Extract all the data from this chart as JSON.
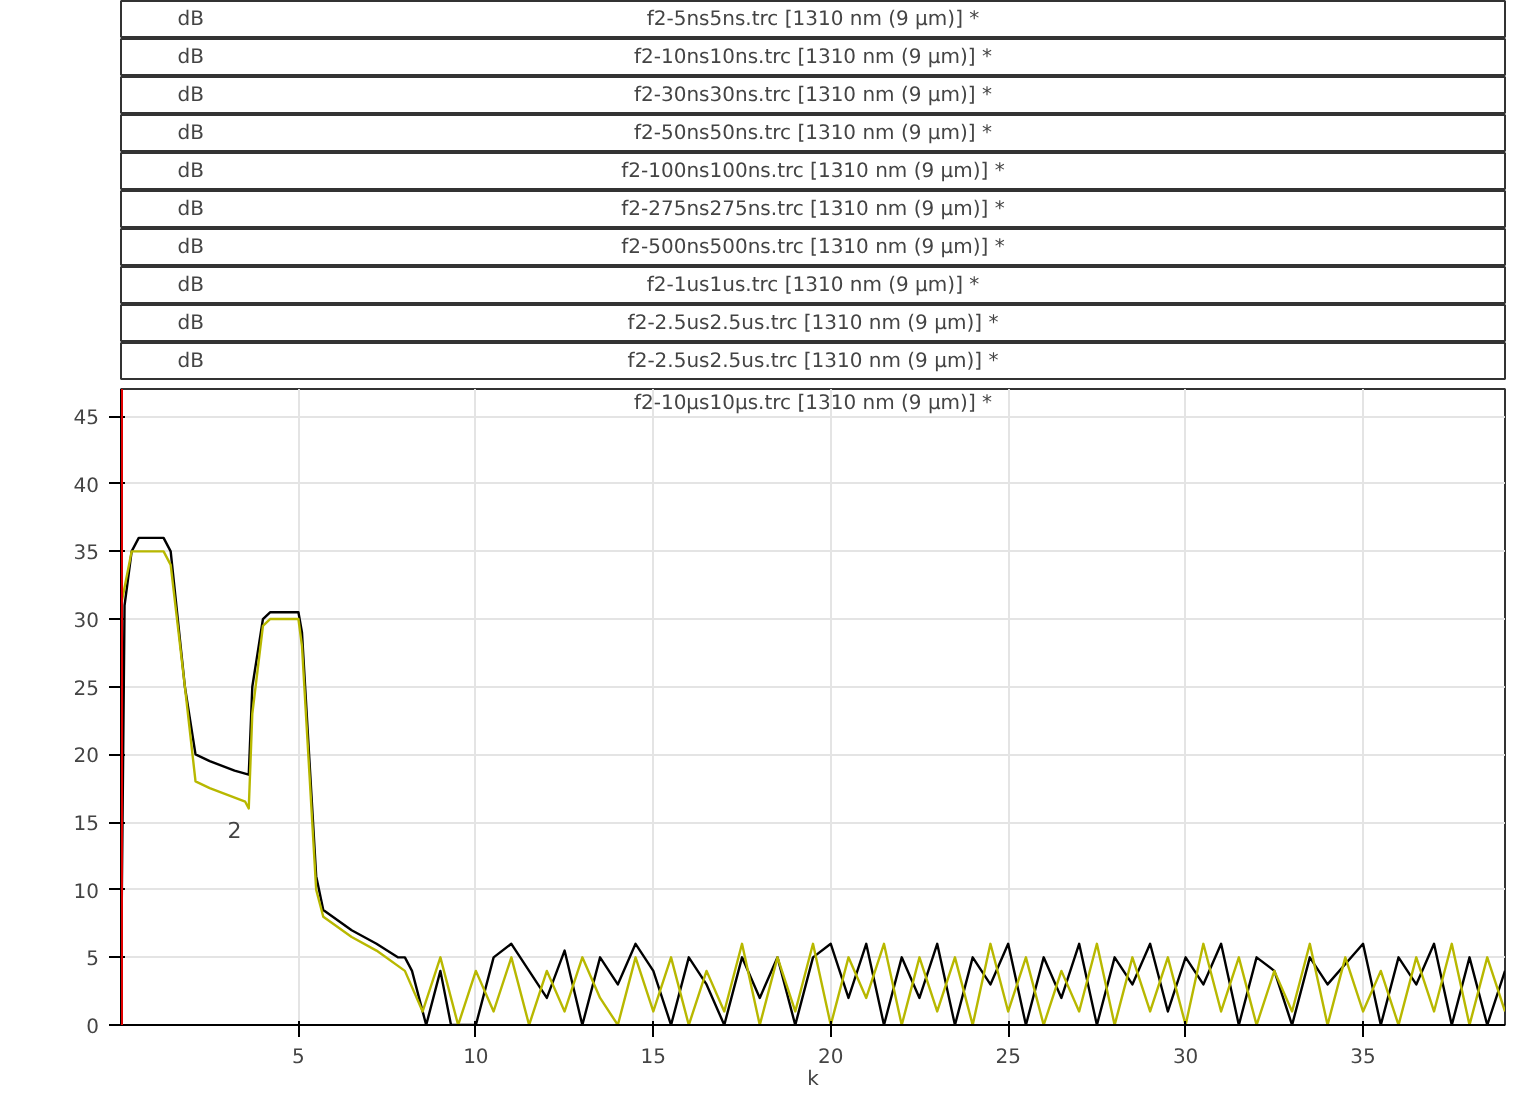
{
  "chart_data": {
    "type": "line",
    "title": "f2-10µs10µs.trc [1310 nm (9 µm)] *",
    "ylabel": "dB",
    "xlabel": "k",
    "annotations": [
      "2",
      "f2-5ns5ns.trc [1310 nm (9 µm)] *",
      "f2-10ns10ns.trc [1310 nm (9 µm)] *",
      "f2-30ns30ns.trc [1310 nm (9 µm)] *",
      "f2-50ns50ns.trc [1310 nm (9 µm)] *",
      "f2-100ns100ns.trc [1310 nm (9 µm)] *",
      "f2-275ns275ns.trc [1310 nm (9 µm)] *",
      "f2-500ns500ns.trc [1310 nm (9 µm)] *",
      "f2-1us1us.trc [1310 nm (9 µm)] *",
      "f2-2.5us2.5us.trc [1310 nm (9 µm)] *",
      "f2-2.5us2.5us.trc [1310 nm (9 µm)] *"
    ],
    "series": [
      {
        "color": "#000000",
        "x": [
          0,
          0.1,
          0.3,
          0.5,
          1.2,
          1.4,
          1.8,
          2.1,
          2.5,
          3.2,
          3.6,
          3.7,
          4.0,
          4.2,
          5.0,
          5.1,
          5.5,
          5.7,
          6.5,
          7.2,
          7.8,
          8.0,
          8.2,
          8.6,
          9.0,
          9.3,
          10.0,
          10.5,
          11,
          11.5,
          12,
          12.5,
          13,
          13.5,
          14,
          14.5,
          15,
          15.5,
          16,
          16.5,
          17,
          17.5,
          18,
          18.5,
          19,
          19.5,
          20,
          20.5,
          21,
          21.5,
          22,
          22.5,
          23,
          23.5,
          24,
          24.5,
          25,
          25.5,
          26,
          26.5,
          27,
          27.5,
          28,
          28.5,
          29,
          29.5,
          30,
          30.5,
          31,
          31.5,
          32,
          32.5,
          33,
          33.5,
          34,
          35,
          35.5,
          36,
          36.5,
          37,
          37.5,
          38,
          38.5,
          39
        ],
        "values": [
          3,
          31,
          35,
          36,
          36,
          35,
          25,
          20,
          19.5,
          18.8,
          18.5,
          25,
          30,
          30.5,
          30.5,
          29,
          11,
          8.5,
          7,
          6,
          5,
          5,
          4,
          0,
          4,
          0,
          0,
          5,
          6,
          4,
          2,
          5.5,
          0,
          5,
          3,
          6,
          4,
          0,
          5,
          3,
          0,
          5,
          2,
          5,
          0,
          5,
          6,
          2,
          6,
          0,
          5,
          2,
          6,
          0,
          5,
          3,
          6,
          0,
          5,
          2,
          6,
          0,
          5,
          3,
          6,
          1,
          5,
          3,
          6,
          0,
          5,
          4,
          0,
          5,
          3,
          6,
          0,
          5,
          3,
          6,
          0,
          5,
          0,
          4
        ]
      },
      {
        "color": "#b8b800",
        "x": [
          0,
          0.3,
          1.2,
          1.4,
          1.8,
          2.1,
          2.5,
          3.0,
          3.5,
          3.6,
          3.7,
          4.0,
          4.2,
          5.0,
          5.1,
          5.5,
          5.7,
          6.5,
          7.2,
          8,
          8.5,
          9,
          9.5,
          10,
          10.5,
          11,
          11.5,
          12,
          12.5,
          13,
          13.5,
          14,
          14.5,
          15,
          15.5,
          16,
          16.5,
          17,
          17.5,
          18,
          18.5,
          19,
          19.5,
          20,
          20.5,
          21,
          21.5,
          22,
          22.5,
          23,
          23.5,
          24,
          24.5,
          25,
          25.5,
          26,
          26.5,
          27,
          27.5,
          28,
          28.5,
          29,
          29.5,
          30,
          30.5,
          31,
          31.5,
          32,
          32.5,
          33,
          33.5,
          34,
          34.5,
          35,
          35.5,
          36,
          36.5,
          37,
          37.5,
          38,
          38.5,
          39
        ],
        "values": [
          31,
          35,
          35,
          34,
          25,
          18,
          17.5,
          17,
          16.5,
          16,
          23,
          29.5,
          30,
          30,
          28,
          10,
          8,
          6.5,
          5.5,
          4,
          1,
          5,
          0,
          4,
          1,
          5,
          0,
          4,
          1,
          5,
          2,
          0,
          5,
          1,
          5,
          0,
          4,
          1,
          6,
          0,
          5,
          1,
          6,
          0,
          5,
          2,
          6,
          0,
          5,
          1,
          5,
          0,
          6,
          1,
          5,
          0,
          4,
          1,
          6,
          0,
          5,
          1,
          5,
          0,
          6,
          1,
          5,
          0,
          4,
          1,
          6,
          0,
          5,
          1,
          4,
          0,
          5,
          1,
          6,
          0,
          5,
          1
        ]
      }
    ],
    "xlim": [
      0,
      39
    ],
    "ylim": [
      0,
      47
    ],
    "xticks": [
      5,
      10,
      15,
      20,
      25,
      30,
      35
    ],
    "yticks": [
      0,
      5,
      10,
      15,
      20,
      25,
      30,
      35,
      40,
      45
    ],
    "grid": true,
    "marker": "none",
    "line_style": "solid",
    "ref_lines": [
      {
        "axis": "x",
        "value": 0,
        "color": "#e00000"
      }
    ]
  }
}
